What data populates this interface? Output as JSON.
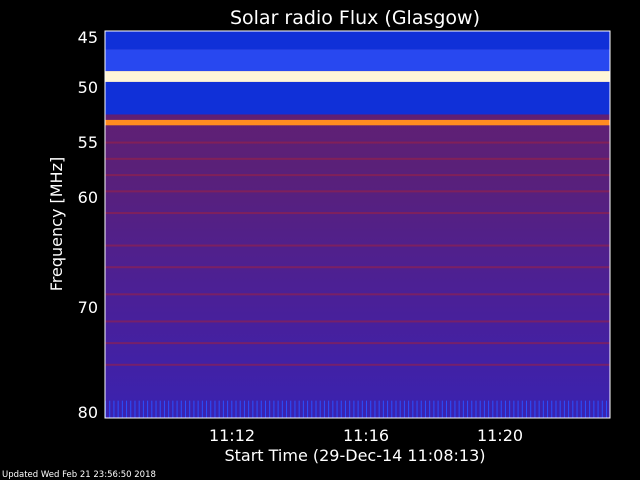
{
  "chart_data": {
    "type": "heatmap",
    "title": "Solar radio Flux (Glasgow)",
    "ylabel": "Frequency [MHz]",
    "xlabel": "Start Time (29-Dec-14 11:08:13)",
    "x_start": "11:08:13",
    "xlim_minutes": [
      0,
      15.2
    ],
    "ylim": [
      80,
      44.3
    ],
    "y_ticks": [
      "45",
      "50",
      "55",
      "60",
      "70",
      "80"
    ],
    "x_ticks": [
      "11:12",
      "11:16",
      "11:20"
    ],
    "bands": [
      {
        "freq_from": 44.3,
        "freq_to": 46.0,
        "level": "low"
      },
      {
        "freq_from": 46.0,
        "freq_to": 48.0,
        "level": "medium-low"
      },
      {
        "freq_from": 48.0,
        "freq_to": 49.0,
        "level": "saturated"
      },
      {
        "freq_from": 49.0,
        "freq_to": 52.0,
        "level": "low"
      },
      {
        "freq_from": 52.5,
        "freq_to": 53.0,
        "level": "high"
      },
      {
        "freq_from": 53.0,
        "freq_to": 80.0,
        "level": "background"
      }
    ],
    "colors": {
      "background": "#4a1f9a",
      "low": "#1030d8",
      "saturated": "#fff6d8",
      "high": "#ff8c20",
      "streak": "#a02040"
    }
  },
  "footer": {
    "updated": "Updated Wed Feb 21 23:56:50 2018"
  }
}
